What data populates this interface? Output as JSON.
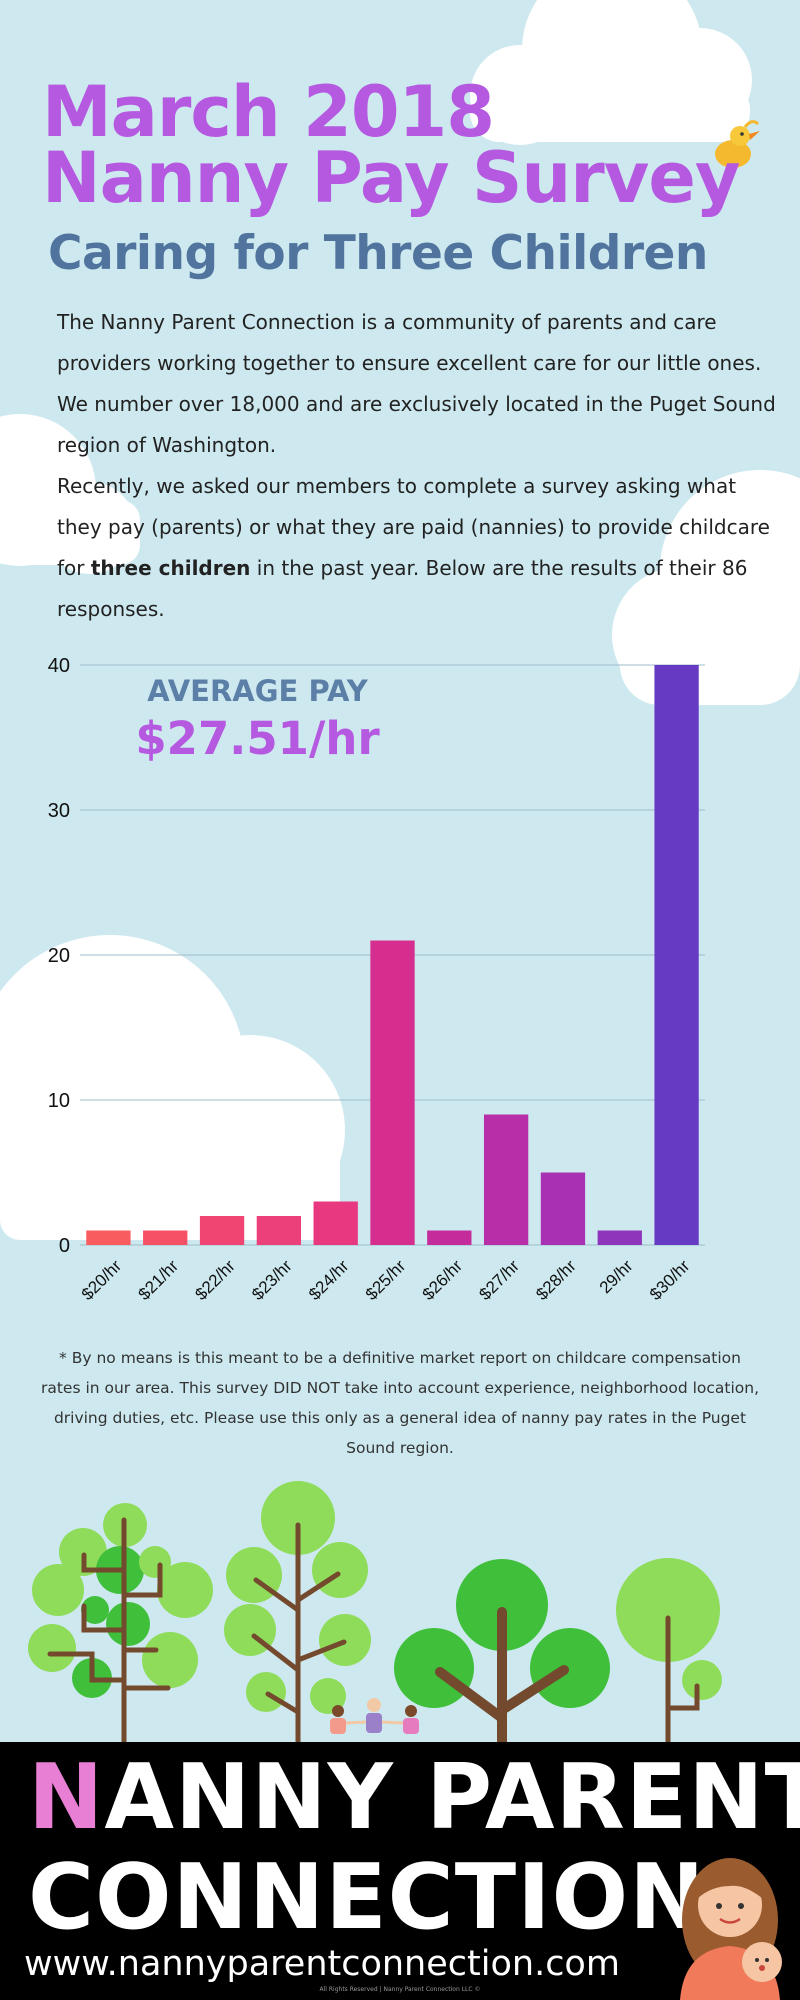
{
  "header": {
    "title_line1": "March 2018",
    "title_line2": "Nanny Pay Survey",
    "subtitle": "Caring for Three Children"
  },
  "intro": {
    "p1": "The Nanny Parent Connection is a community of parents and care providers working together to ensure excellent care for our little ones. We number over 18,000 and are exclusively located in the Puget Sound region of Washington.",
    "p2_before": "Recently, we asked our members to complete a survey asking what they pay (parents) or what they are paid (nannies) to provide childcare for ",
    "p2_bold": "three children",
    "p2_after": " in the past year. Below are the results of their 86 responses."
  },
  "average": {
    "label": "AVERAGE PAY",
    "value": "$27.51/hr"
  },
  "chart_data": {
    "type": "bar",
    "categories": [
      "$20/hr",
      "$21/hr",
      "$22/hr",
      "$23/hr",
      "$24/hr",
      "$25/hr",
      "$26/hr",
      "$27/hr",
      "$28/hr",
      "29/hr",
      "$30/hr"
    ],
    "values": [
      1,
      1,
      2,
      2,
      3,
      21,
      1,
      9,
      5,
      1,
      40
    ],
    "colors": [
      "#f95c5e",
      "#f65067",
      "#f04473",
      "#ec407a",
      "#e8387f",
      "#d62e8e",
      "#c52c9b",
      "#b82ea8",
      "#a830b2",
      "#8e35bc",
      "#673ac4"
    ],
    "yticks": [
      0,
      10,
      20,
      30,
      40
    ],
    "ylim": [
      0,
      40
    ],
    "grid": true,
    "title": "",
    "xlabel": "",
    "ylabel": ""
  },
  "disclaimer": "* By no means is this meant to be a definitive market report on childcare compensation rates in our area. This survey DID NOT take into account experience, neighborhood location, driving duties, etc. Please use this only as a general idea of nanny pay rates in the Puget Sound region.",
  "footer": {
    "brand_first_letter": "N",
    "brand_line1_rest": "ANNY PARENT",
    "brand_line2": "CONNECTION",
    "website": "www.nannyparentconnection.com",
    "rights": "All Rights Reserved | Nanny Parent Connection LLC ©"
  },
  "colors": {
    "background": "#cde9ef",
    "title": "#b559e0",
    "subtitle": "#50749d",
    "brand_accent": "#e87fd4"
  }
}
